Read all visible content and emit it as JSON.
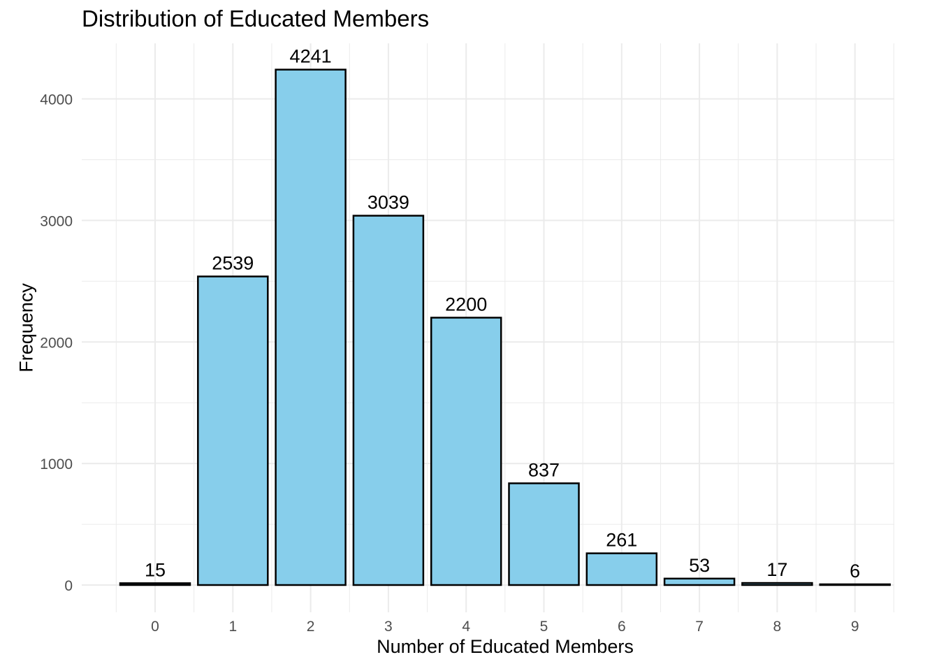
{
  "chart_data": {
    "type": "bar",
    "title": "Distribution of Educated Members",
    "xlabel": "Number of Educated Members",
    "ylabel": "Frequency",
    "categories": [
      "0",
      "1",
      "2",
      "3",
      "4",
      "5",
      "6",
      "7",
      "8",
      "9"
    ],
    "values": [
      15,
      2539,
      4241,
      3039,
      2200,
      837,
      261,
      53,
      17,
      6
    ],
    "data_labels": [
      "15",
      "2539",
      "4241",
      "3039",
      "2200",
      "837",
      "261",
      "53",
      "17",
      "6"
    ],
    "y_ticks": [
      0,
      1000,
      2000,
      3000,
      4000
    ],
    "y_tick_labels": [
      "0",
      "1000",
      "2000",
      "3000",
      "4000"
    ],
    "ylim": [
      0,
      4241
    ],
    "grid": true,
    "legend": "none",
    "colors": {
      "bar_fill": "#87CEEB",
      "bar_stroke": "#000000",
      "grid": "#EBEBEB",
      "tick_text": "#4D4D4D"
    }
  }
}
